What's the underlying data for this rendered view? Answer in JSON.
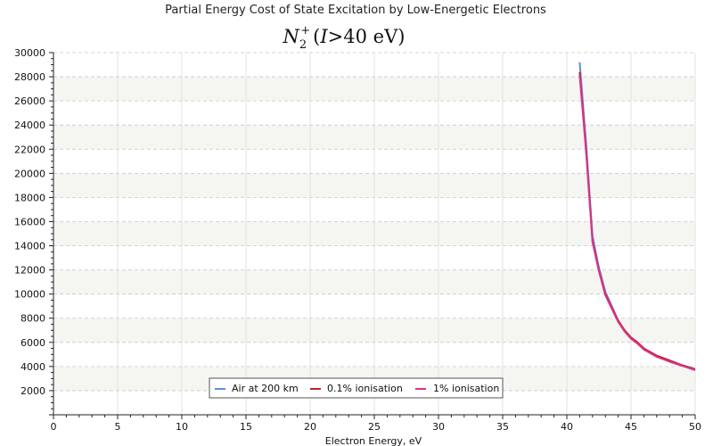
{
  "chart_data": {
    "type": "line",
    "title": "Partial Energy Cost of State Excitation by Low-Energetic Electrons",
    "subtitle": {
      "species": "N",
      "subscript": "2",
      "superscript": "+",
      "condition_var": "I",
      "condition_op": ">",
      "condition_value": "40",
      "condition_unit": "eV"
    },
    "xlabel": "Electron Energy, eV",
    "ylabel": "",
    "xlim": [
      0,
      50
    ],
    "ylim": [
      0,
      30000
    ],
    "x_ticks": [
      0,
      5,
      10,
      15,
      20,
      25,
      30,
      35,
      40,
      45,
      50
    ],
    "x_tick_labels": [
      "0",
      "5",
      "10",
      "15",
      "20",
      "25",
      "30",
      "35",
      "40",
      "45",
      "50"
    ],
    "y_ticks": [
      2000,
      4000,
      6000,
      8000,
      10000,
      12000,
      14000,
      16000,
      18000,
      20000,
      22000,
      24000,
      26000,
      28000,
      30000
    ],
    "y_tick_labels": [
      "2000",
      "4000",
      "6000",
      "8000",
      "10000",
      "12000",
      "14000",
      "16000",
      "18000",
      "20000",
      "22000",
      "24000",
      "26000",
      "28000",
      "30000"
    ],
    "grid": true,
    "legend_position": "bottom-center",
    "series": [
      {
        "name": "Air at 200 km",
        "color": "#5b8fd8",
        "x": [
          41.0,
          41.5,
          42.0,
          42.5,
          43.0,
          43.5,
          44.0,
          44.5,
          45.0,
          45.5,
          46.0,
          47.0,
          48.0,
          49.0,
          50.0
        ],
        "y": [
          29200,
          22500,
          14800,
          12200,
          10200,
          9000,
          7800,
          7000,
          6400,
          6000,
          5500,
          4900,
          4500,
          4100,
          3800
        ]
      },
      {
        "name": "0.1% ionisation",
        "color": "#c0212b",
        "x": [
          41.0,
          41.5,
          42.0,
          42.5,
          43.0,
          43.5,
          44.0,
          44.5,
          45.0,
          45.5,
          46.0,
          47.0,
          48.0,
          49.0,
          50.0
        ],
        "y": [
          28400,
          22000,
          14400,
          12000,
          10000,
          8900,
          7800,
          7000,
          6400,
          6000,
          5500,
          4900,
          4500,
          4100,
          3750
        ]
      },
      {
        "name": "1% ionisation",
        "color": "#e0308a",
        "x": [
          41.0,
          41.5,
          42.0,
          42.5,
          43.0,
          43.5,
          44.0,
          44.5,
          45.0,
          45.5,
          46.0,
          47.0,
          48.0,
          49.0,
          50.0
        ],
        "y": [
          28100,
          21800,
          14300,
          11900,
          9900,
          8800,
          7700,
          6900,
          6300,
          5900,
          5400,
          4800,
          4400,
          4050,
          3700
        ]
      }
    ]
  }
}
